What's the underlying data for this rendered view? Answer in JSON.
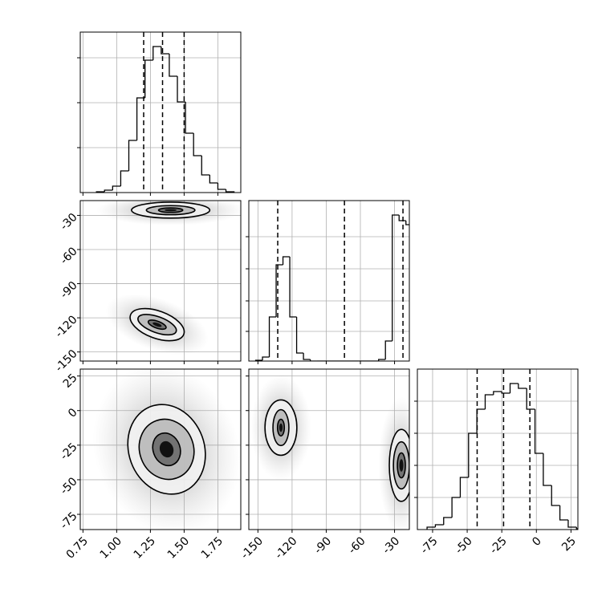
{
  "chart_data": {
    "type": "corner",
    "params": [
      {
        "lim": [
          0.73,
          1.92
        ],
        "ticks": [
          0.75,
          {
            "value": 1.0,
            "label": "1.00"
          },
          1.25,
          {
            "value": 1.5,
            "label": "1.50"
          },
          1.75
        ]
      },
      {
        "lim": [
          -158,
          -17
        ],
        "ticks": [
          -150,
          -120,
          -90,
          -60,
          -30
        ]
      },
      {
        "lim": [
          -86,
          30
        ],
        "ticks": [
          -75,
          -50,
          -25,
          0,
          25
        ]
      }
    ],
    "panels": [
      {
        "type": "histogram",
        "bins": [
          0.85,
          0.91,
          0.97,
          1.03,
          1.09,
          1.15,
          1.21,
          1.27,
          1.33,
          1.39,
          1.45,
          1.51,
          1.57,
          1.63,
          1.69,
          1.75,
          1.81,
          1.87
        ],
        "counts": [
          1,
          3,
          8,
          27,
          65,
          118,
          165,
          182,
          173,
          145,
          113,
          74,
          46,
          22,
          12,
          4,
          1
        ],
        "ylim": [
          0,
          200
        ],
        "yticks": [
          56,
          112,
          168
        ],
        "quantiles": [
          1.2,
          1.34,
          1.5
        ]
      },
      {
        "type": "contour",
        "clusters": [
          {
            "cx": 1.4,
            "cy": -25.4,
            "angle": 0,
            "levels": [
              [
                0.29,
                7
              ],
              [
                0.18,
                4
              ],
              [
                0.09,
                2
              ]
            ]
          },
          {
            "cx": 1.3,
            "cy": -126,
            "angle": 20,
            "levels": [
              [
                0.21,
                12
              ],
              [
                0.15,
                7
              ],
              [
                0.07,
                3
              ]
            ]
          }
        ]
      },
      {
        "type": "histogram",
        "bins": [
          -152,
          -146,
          -140,
          -134,
          -128,
          -122,
          -116,
          -110,
          -104,
          -98,
          -92,
          -86,
          -80,
          -74,
          -68,
          -62,
          -56,
          -50,
          -44,
          -38,
          -32,
          -26,
          -20,
          -14
        ],
        "counts": [
          1,
          5,
          55,
          120,
          130,
          55,
          10,
          2,
          0,
          0,
          0,
          0,
          0,
          0,
          0,
          0,
          0,
          0,
          2,
          25,
          182,
          175,
          170
        ],
        "ylim": [
          0,
          200
        ],
        "yticks": [
          37,
          75,
          115,
          155
        ],
        "quantiles": [
          -132.6,
          -74,
          -22.6
        ]
      },
      {
        "type": "contour",
        "clusters": [
          {
            "cx": 1.37,
            "cy": -28,
            "angle": -20,
            "levels": [
              [
                0.28,
                33
              ],
              [
                0.2,
                22
              ],
              [
                0.1,
                12
              ]
            ]
          }
        ]
      },
      {
        "type": "contour",
        "clusters": [
          {
            "cx": -129.8,
            "cy": -12.3,
            "angle": 0,
            "levels": [
              [
                14,
                20
              ],
              [
                7,
                13
              ],
              [
                3,
                6
              ]
            ]
          },
          {
            "cx": -24,
            "cy": -39.6,
            "angle": 0,
            "levels": [
              [
                10.6,
                26
              ],
              [
                7,
                17
              ],
              [
                3.5,
                9
              ]
            ]
          }
        ]
      },
      {
        "type": "histogram",
        "bins": [
          -79,
          -73,
          -67,
          -61,
          -55,
          -49,
          -43,
          -37,
          -31,
          -25,
          -19,
          -13,
          -7,
          -1,
          5,
          11,
          17,
          23,
          29,
          35
        ],
        "counts": [
          3,
          6,
          15,
          40,
          65,
          120,
          150,
          168,
          172,
          170,
          182,
          176,
          150,
          95,
          55,
          30,
          12,
          3,
          1
        ],
        "ylim": [
          0,
          200
        ],
        "yticks": [
          40,
          80,
          120,
          160
        ],
        "quantiles": [
          -42.8,
          -23.7,
          -4.7
        ]
      }
    ]
  }
}
